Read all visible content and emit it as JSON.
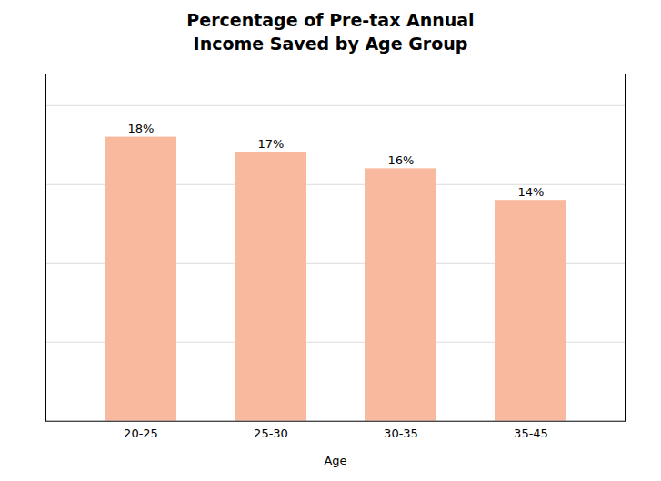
{
  "chart_data": {
    "type": "bar",
    "title": "Percentage of Pre-tax Annual\nIncome Saved by Age Group",
    "xlabel": "Age",
    "categories": [
      "20-25",
      "25-30",
      "30-35",
      "35-45"
    ],
    "values": [
      18,
      17,
      16,
      14
    ],
    "value_labels": [
      "18%",
      "17%",
      "16%",
      "14%"
    ],
    "color": "#F9B99F",
    "ylim": [
      0,
      22
    ],
    "yticks": [
      5,
      10,
      15,
      20
    ],
    "grid": true,
    "data_labels": true,
    "tick_labels": "x"
  }
}
